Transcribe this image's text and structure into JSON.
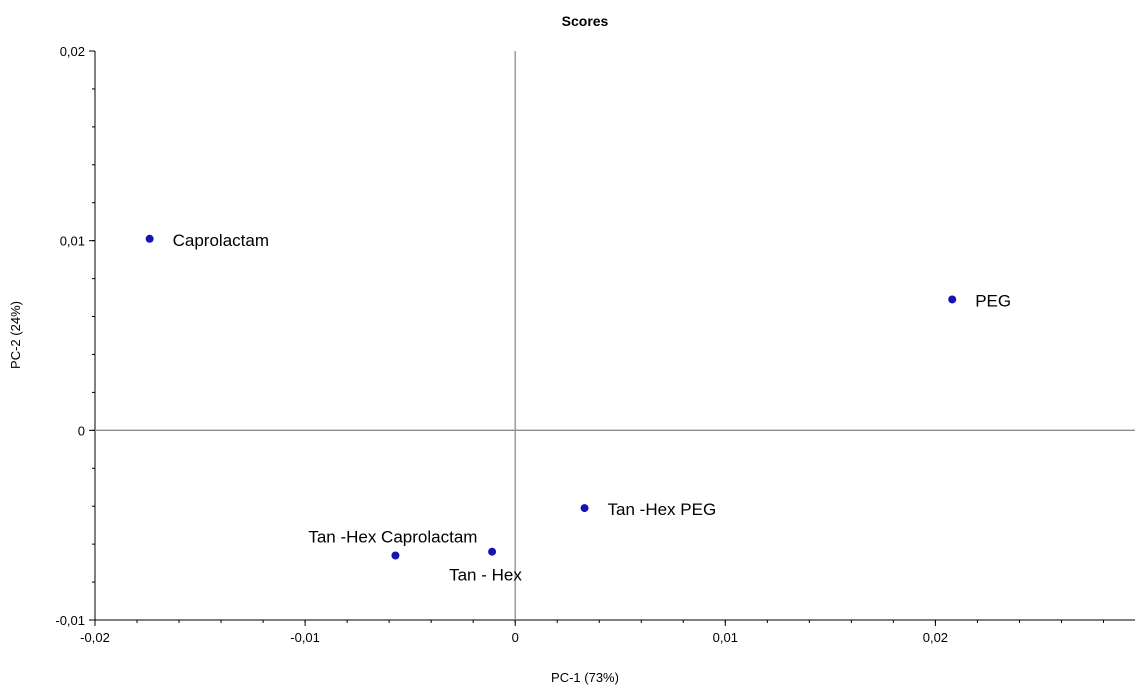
{
  "chart_data": {
    "type": "scatter",
    "title": "Scores",
    "xlabel": "PC-1 (73%)",
    "ylabel": "PC-2 (24%)",
    "xlim": [
      -0.02,
      0.0295
    ],
    "ylim": [
      -0.01,
      0.02
    ],
    "xticks": [
      {
        "value": -0.02,
        "label": "-0,02"
      },
      {
        "value": -0.01,
        "label": "-0,01"
      },
      {
        "value": 0,
        "label": "0"
      },
      {
        "value": 0.01,
        "label": "0,01"
      },
      {
        "value": 0.02,
        "label": "0,02"
      }
    ],
    "yticks": [
      {
        "value": -0.01,
        "label": "-0,01"
      },
      {
        "value": 0,
        "label": "0"
      },
      {
        "value": 0.01,
        "label": "0,01"
      },
      {
        "value": 0.02,
        "label": "0,02"
      }
    ],
    "minor_step": 0.002,
    "grid": false,
    "zero_lines": true,
    "marker_color": "#1414b4",
    "points": [
      {
        "label": "Caprolactam",
        "x": -0.0174,
        "y": 0.0101,
        "label_pos": "right"
      },
      {
        "label": "PEG",
        "x": 0.0208,
        "y": 0.0069,
        "label_pos": "right"
      },
      {
        "label": "Tan -Hex PEG",
        "x": 0.0033,
        "y": -0.0041,
        "label_pos": "right"
      },
      {
        "label": "Tan -Hex Caprolactam",
        "x": -0.0057,
        "y": -0.0066,
        "label_pos": "above-left"
      },
      {
        "label": "Tan - Hex",
        "x": -0.0011,
        "y": -0.0064,
        "label_pos": "below-left"
      }
    ]
  }
}
